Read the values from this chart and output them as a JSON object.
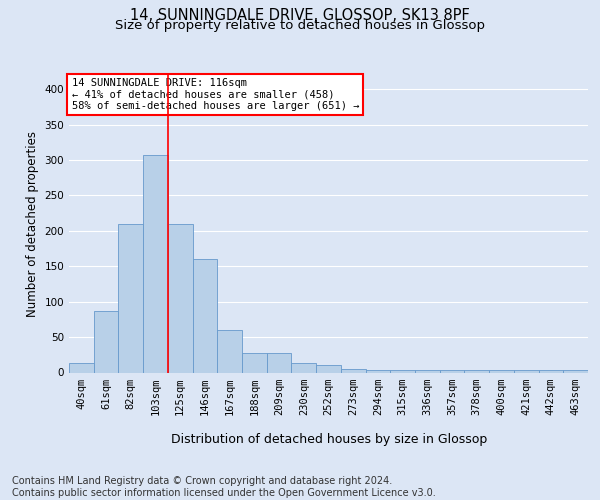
{
  "title1": "14, SUNNINGDALE DRIVE, GLOSSOP, SK13 8PF",
  "title2": "Size of property relative to detached houses in Glossop",
  "xlabel": "Distribution of detached houses by size in Glossop",
  "ylabel": "Number of detached properties",
  "categories": [
    "40sqm",
    "61sqm",
    "82sqm",
    "103sqm",
    "125sqm",
    "146sqm",
    "167sqm",
    "188sqm",
    "209sqm",
    "230sqm",
    "252sqm",
    "273sqm",
    "294sqm",
    "315sqm",
    "336sqm",
    "357sqm",
    "378sqm",
    "400sqm",
    "421sqm",
    "442sqm",
    "463sqm"
  ],
  "values": [
    13,
    87,
    210,
    307,
    210,
    160,
    60,
    28,
    28,
    14,
    10,
    5,
    3,
    3,
    3,
    3,
    3,
    3,
    3,
    3,
    3
  ],
  "bar_color": "#b8d0e8",
  "bar_edge_color": "#6699cc",
  "vline_color": "red",
  "vline_x": 3.5,
  "annotation_text": "14 SUNNINGDALE DRIVE: 116sqm\n← 41% of detached houses are smaller (458)\n58% of semi-detached houses are larger (651) →",
  "annotation_box_color": "white",
  "annotation_box_edgecolor": "red",
  "ylim": [
    0,
    420
  ],
  "yticks": [
    0,
    50,
    100,
    150,
    200,
    250,
    300,
    350,
    400
  ],
  "background_color": "#dce6f5",
  "plot_bg_color": "#dce6f5",
  "grid_color": "white",
  "footer_text": "Contains HM Land Registry data © Crown copyright and database right 2024.\nContains public sector information licensed under the Open Government Licence v3.0.",
  "title1_fontsize": 10.5,
  "title2_fontsize": 9.5,
  "xlabel_fontsize": 9,
  "ylabel_fontsize": 8.5,
  "tick_fontsize": 7.5,
  "annotation_fontsize": 7.5,
  "footer_fontsize": 7
}
